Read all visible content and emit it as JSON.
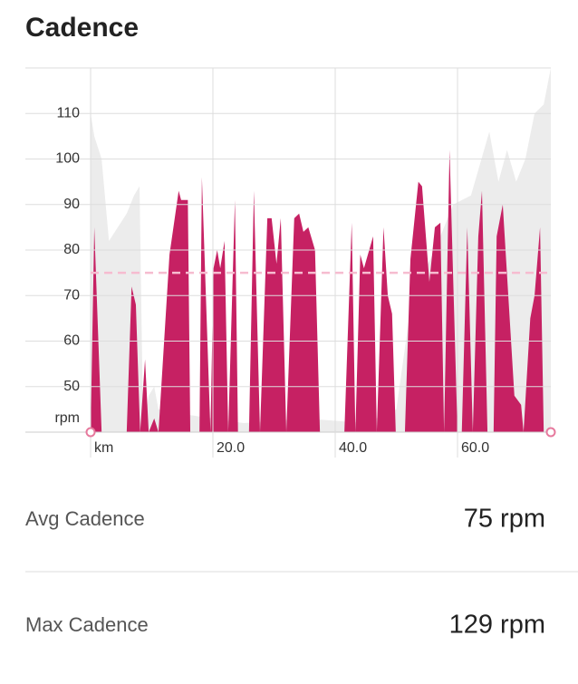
{
  "title": "Cadence",
  "chart_data": {
    "type": "area",
    "xlim": [
      -10.67,
      75.26
    ],
    "ylim": [
      40,
      120
    ],
    "xticks": [
      {
        "value": 0,
        "label": "km"
      },
      {
        "value": 20,
        "label": "20.0"
      },
      {
        "value": 40,
        "label": "40.0"
      },
      {
        "value": 60,
        "label": "60.0"
      }
    ],
    "yticks": [
      50,
      60,
      70,
      80,
      90,
      100,
      110
    ],
    "y_unit": "rpm",
    "average": 75,
    "average_color": "#f6bcd0",
    "grid": true,
    "series": [
      {
        "color": "#ececec",
        "x": [
          0,
          0.6,
          1.8,
          3,
          5.9,
          7.1,
          8,
          8.6,
          9.5,
          10.4,
          11.1,
          15,
          25,
          35,
          45,
          50,
          52.6,
          56.3,
          59.3,
          62.2,
          65.2,
          66.7,
          68.1,
          69.6,
          71.1,
          72.6,
          74.1,
          75.26
        ],
        "values": [
          110,
          105,
          100,
          82,
          88,
          92,
          94,
          40,
          48,
          50,
          45,
          44,
          42,
          43,
          42,
          45,
          70,
          80,
          90,
          92,
          106,
          95,
          102,
          95,
          100,
          110,
          112,
          120
        ]
      },
      {
        "color": "#c62163",
        "x": [
          0,
          0.6,
          1.8,
          5.9,
          6.7,
          7.4,
          8.1,
          8.9,
          9.5,
          10.4,
          11.1,
          12.9,
          14.4,
          14.8,
          15.9,
          16.3,
          17.8,
          18.2,
          19.6,
          20.1,
          20.7,
          21.2,
          21.9,
          22.5,
          23.6,
          24.1,
          25.9,
          26.7,
          27.7,
          28.9,
          29.6,
          30.4,
          31.1,
          32,
          33.3,
          34.1,
          34.8,
          35.6,
          36.7,
          37.5,
          41.5,
          42.7,
          43.3,
          44.1,
          44.7,
          46.2,
          46.8,
          47.9,
          48.6,
          49.3,
          49.9,
          51.4,
          52.3,
          53.6,
          54.2,
          55.4,
          56.3,
          57.2,
          57.8,
          58.7,
          60,
          60.7,
          61.6,
          62.5,
          63.4,
          64,
          64.9,
          65.9,
          66.4,
          67.4,
          69.3,
          70.4,
          70.8,
          71.9,
          72.6,
          73.5,
          74.1
        ],
        "values": [
          40,
          85,
          40,
          40,
          72,
          68,
          40,
          56,
          40,
          43,
          40,
          79,
          93,
          91,
          91,
          40,
          40,
          96,
          40,
          76,
          80,
          76,
          82,
          40,
          91,
          40,
          40,
          93,
          40,
          87,
          87,
          77,
          87,
          40,
          87,
          88,
          84,
          85,
          80,
          40,
          40,
          86,
          40,
          79,
          76,
          83,
          40,
          85,
          70,
          66,
          40,
          40,
          78,
          95,
          94,
          73,
          85,
          86,
          40,
          102,
          40,
          40,
          85,
          40,
          83,
          93,
          40,
          40,
          83,
          90,
          48,
          46,
          40,
          65,
          70,
          85,
          40
        ]
      }
    ]
  },
  "stats": [
    {
      "label": "Avg Cadence",
      "value": "75 rpm"
    },
    {
      "label": "Max Cadence",
      "value": "129 rpm"
    }
  ]
}
